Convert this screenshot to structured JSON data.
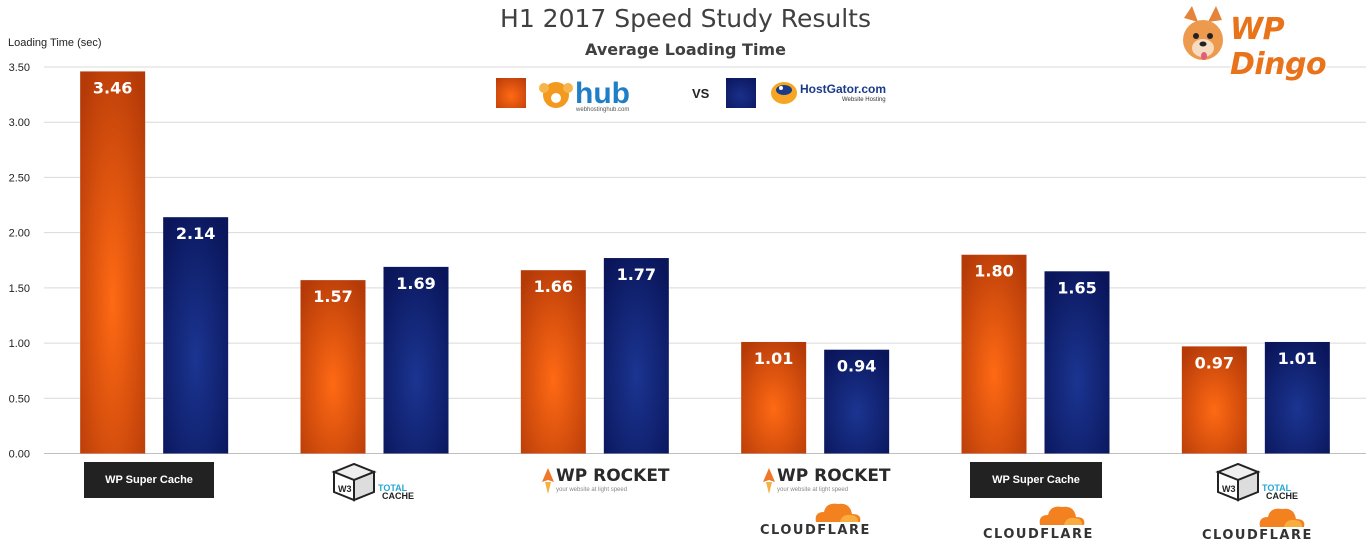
{
  "header": {
    "title": "H1 2017 Speed Study Results",
    "subtitle": "Average Loading Time",
    "y_axis_label": "Loading Time (sec)"
  },
  "brand": {
    "logo_text": "WP Dingo",
    "logo_icon": "dog-icon"
  },
  "legend": {
    "items": [
      {
        "logo_text": "hub",
        "logo_subtext": "webhostinghub.com",
        "color": "#e8560f"
      },
      {
        "logo_text": "HostGator.com",
        "logo_subtext": "Website Hosting",
        "color": "#0e1f73"
      }
    ],
    "vs_label": "VS"
  },
  "plugins": [
    {
      "group": 0,
      "label": "WP Super Cache"
    },
    {
      "group": 1,
      "label_top": "TOTAL",
      "label_bottom": "CACHE",
      "badge": "W3"
    },
    {
      "group": 2,
      "label": "WP ROCKET",
      "tagline": "your website at light speed"
    },
    {
      "group": 3,
      "label": "WP ROCKET",
      "tagline": "your website at light speed",
      "cdn": "CLOUDFLARE"
    },
    {
      "group": 4,
      "label": "WP Super Cache",
      "cdn": "CLOUDFLARE"
    },
    {
      "group": 5,
      "label_top": "TOTAL",
      "label_bottom": "CACHE",
      "badge": "W3",
      "cdn": "CLOUDFLARE"
    }
  ],
  "chart_data": {
    "type": "bar",
    "title": "H1 2017 Speed Study Results",
    "subtitle": "Average Loading Time",
    "ylabel": "Loading Time (sec)",
    "ylim": [
      0,
      3.5
    ],
    "yticks": [
      "0.00",
      "0.50",
      "1.00",
      "1.50",
      "2.00",
      "2.50",
      "3.00",
      "3.50"
    ],
    "grid": true,
    "categories": [
      "WP Super Cache",
      "W3 Total Cache",
      "WP Rocket",
      "WP Rocket + Cloudflare",
      "WP Super Cache + Cloudflare",
      "W3 Total Cache + Cloudflare"
    ],
    "series": [
      {
        "name": "hub",
        "color": "#e8560f",
        "values": [
          3.46,
          1.57,
          1.66,
          1.01,
          1.8,
          0.97
        ],
        "labels": [
          "3.46",
          "1.57",
          "1.66",
          "1.01",
          "1.80",
          "0.97"
        ]
      },
      {
        "name": "HostGator.com",
        "color": "#0e1f73",
        "values": [
          2.14,
          1.69,
          1.77,
          0.94,
          1.65,
          1.01
        ],
        "labels": [
          "2.14",
          "1.69",
          "1.77",
          "0.94",
          "1.65",
          "1.01"
        ]
      }
    ]
  }
}
